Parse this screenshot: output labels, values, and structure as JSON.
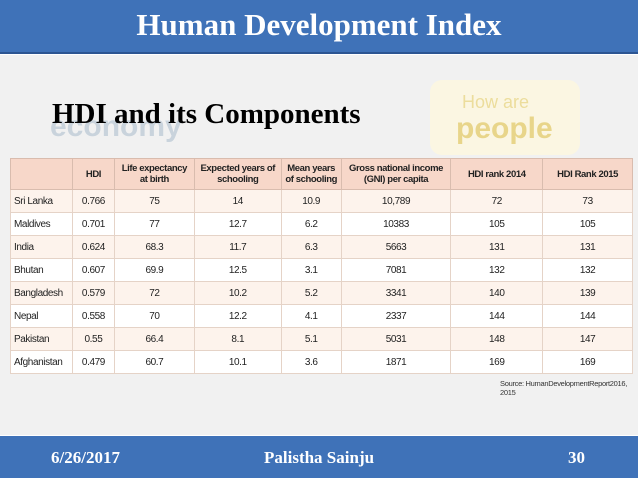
{
  "header": {
    "title": "Human Development Index"
  },
  "background": {
    "word_left": "economy",
    "word_right_small": "How are",
    "word_right": "people"
  },
  "subtitle": "HDI and its Components",
  "table": {
    "headers": [
      "",
      "HDI",
      "Life expectancy at birth",
      "Expected years of schooling",
      "Mean years of schooling",
      "Gross national income (GNI) per capita",
      "HDI rank 2014",
      "HDI Rank 2015"
    ],
    "rows": [
      [
        "Sri Lanka",
        "0.766",
        "75",
        "14",
        "10.9",
        "10,789",
        "72",
        "73"
      ],
      [
        "Maldives",
        "0.701",
        "77",
        "12.7",
        "6.2",
        "10383",
        "105",
        "105"
      ],
      [
        "India",
        "0.624",
        "68.3",
        "11.7",
        "6.3",
        "5663",
        "131",
        "131"
      ],
      [
        "Bhutan",
        "0.607",
        "69.9",
        "12.5",
        "3.1",
        "7081",
        "132",
        "132"
      ],
      [
        "Bangladesh",
        "0.579",
        "72",
        "10.2",
        "5.2",
        "3341",
        "140",
        "139"
      ],
      [
        "Nepal",
        "0.558",
        "70",
        "12.2",
        "4.1",
        "2337",
        "144",
        "144"
      ],
      [
        "Pakistan",
        "0.55",
        "66.4",
        "8.1",
        "5.1",
        "5031",
        "148",
        "147"
      ],
      [
        "Afghanistan",
        "0.479",
        "60.7",
        "10.1",
        "3.6",
        "1871",
        "169",
        "169"
      ]
    ],
    "source": "Source: HumanDevelopmentReport2016, 2015"
  },
  "footer": {
    "date": "6/26/2017",
    "author": "Palistha Sainju",
    "page": "30"
  },
  "colors": {
    "header_bg": "#3f72b8",
    "table_header_bg": "#f7d7c9",
    "row_alt_bg": "#fdf3ec"
  }
}
